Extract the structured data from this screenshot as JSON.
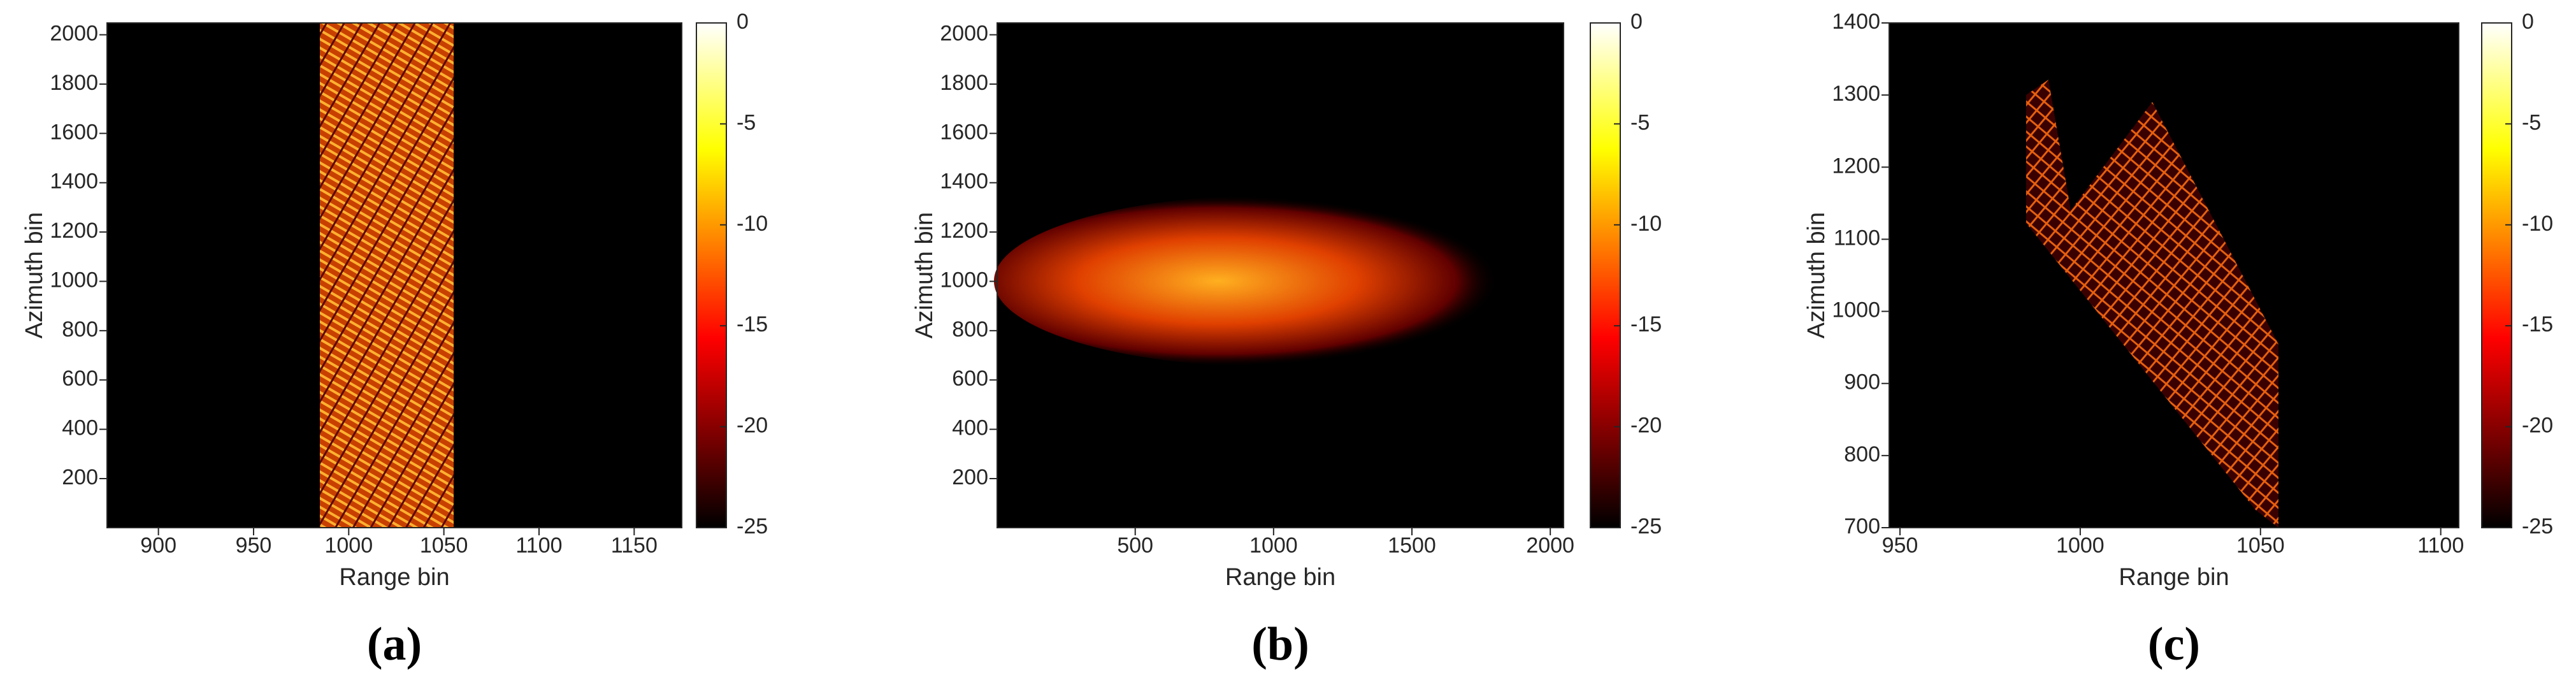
{
  "chart_data": [
    {
      "type": "heatmap",
      "xlabel": "Range bin",
      "ylabel": "Azimuth bin",
      "caption": "(a)",
      "xlim": [
        873,
        1175
      ],
      "xticks": [
        900,
        950,
        1000,
        1050,
        1100,
        1150
      ],
      "ylim": [
        1,
        2048
      ],
      "yticks": [
        200,
        400,
        600,
        800,
        1000,
        1200,
        1400,
        1600,
        1800,
        2000
      ],
      "colormap": "hot",
      "clim": [
        -25,
        0
      ],
      "cticks": [
        -25,
        -20,
        -15,
        -10,
        -5,
        0
      ]
    },
    {
      "type": "heatmap",
      "xlabel": "Range bin",
      "ylabel": "Azimuth bin",
      "caption": "(b)",
      "xlim": [
        1,
        2048
      ],
      "xticks": [
        500,
        1000,
        1500,
        2000
      ],
      "ylim": [
        1,
        2048
      ],
      "yticks": [
        200,
        400,
        600,
        800,
        1000,
        1200,
        1400,
        1600,
        1800,
        2000
      ],
      "colormap": "hot",
      "clim": [
        -25,
        0
      ],
      "cticks": [
        -25,
        -20,
        -15,
        -10,
        -5,
        0
      ]
    },
    {
      "type": "heatmap",
      "xlabel": "Range bin",
      "ylabel": "Azimuth bin",
      "caption": "(c)",
      "xlim": [
        947,
        1105
      ],
      "xticks": [
        950,
        1000,
        1050,
        1100
      ],
      "ylim": [
        700,
        1400
      ],
      "yticks": [
        700,
        800,
        900,
        1000,
        1100,
        1200,
        1300,
        1400
      ],
      "colormap": "hot",
      "clim": [
        -25,
        0
      ],
      "cticks": [
        -25,
        -20,
        -15,
        -10,
        -5,
        0
      ]
    }
  ]
}
